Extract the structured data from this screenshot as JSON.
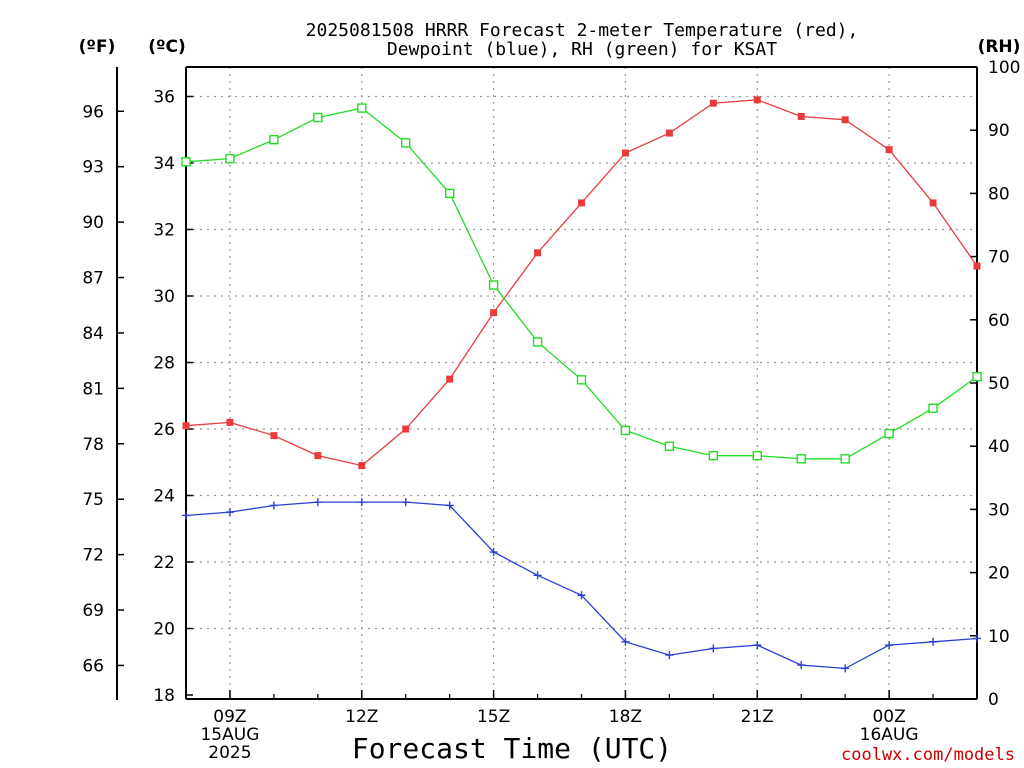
{
  "title_line1": "2025081508 HRRR Forecast 2-meter Temperature (red),",
  "title_line2": "Dewpoint (blue), RH (green) for KSAT",
  "unit_f": "(ºF)",
  "unit_c": "(ºC)",
  "unit_rh": "(RH)",
  "xlabel": "Forecast Time (UTC)",
  "credit": "coolwx.com/models",
  "chart_data": {
    "type": "line",
    "x": [
      8,
      9,
      10,
      11,
      12,
      13,
      14,
      15,
      16,
      17,
      18,
      19,
      20,
      21,
      22,
      23,
      24,
      25,
      26
    ],
    "x_ticks": [
      {
        "value": 9,
        "lines": [
          "09Z",
          "15AUG",
          "2025"
        ]
      },
      {
        "value": 12,
        "lines": [
          "12Z"
        ]
      },
      {
        "value": 15,
        "lines": [
          "15Z"
        ]
      },
      {
        "value": 18,
        "lines": [
          "18Z"
        ]
      },
      {
        "value": 21,
        "lines": [
          "21Z"
        ]
      },
      {
        "value": 24,
        "lines": [
          "00Z",
          "16AUG"
        ]
      }
    ],
    "xlim": [
      8,
      26
    ],
    "left_c_axis": {
      "ylim": [
        18,
        37
      ],
      "ticks": [
        18,
        20,
        22,
        24,
        26,
        28,
        30,
        32,
        34,
        36
      ]
    },
    "left_f_axis": {
      "ticks": [
        66,
        69,
        72,
        75,
        78,
        81,
        84,
        87,
        90,
        93,
        96
      ]
    },
    "right_rh_axis": {
      "ylim": [
        0,
        100
      ],
      "ticks": [
        0,
        10,
        20,
        30,
        40,
        50,
        60,
        70,
        80,
        90,
        100
      ]
    },
    "grid": true,
    "series": [
      {
        "axis": "c",
        "color": "#e83c3c",
        "marker": "filled-square",
        "values": [
          26.1,
          26.2,
          25.8,
          25.2,
          24.9,
          26.0,
          27.5,
          29.5,
          31.3,
          32.8,
          34.3,
          34.9,
          35.8,
          35.9,
          35.4,
          35.3,
          34.4,
          32.8,
          30.9
        ]
      },
      {
        "axis": "c",
        "color": "#2a3fd6",
        "marker": "plus",
        "values": [
          23.4,
          23.5,
          23.7,
          23.8,
          23.8,
          23.8,
          23.7,
          22.3,
          21.6,
          21.0,
          19.6,
          19.2,
          19.4,
          19.5,
          18.9,
          18.8,
          19.5,
          19.6,
          19.7
        ]
      },
      {
        "axis": "rh",
        "color": "#22dd22",
        "marker": "open-square",
        "values": [
          85,
          85.5,
          88.5,
          92,
          93.5,
          88,
          80,
          65.5,
          56.5,
          50.5,
          42.5,
          40,
          38.5,
          38.5,
          38,
          38,
          42,
          46,
          51
        ]
      }
    ]
  }
}
